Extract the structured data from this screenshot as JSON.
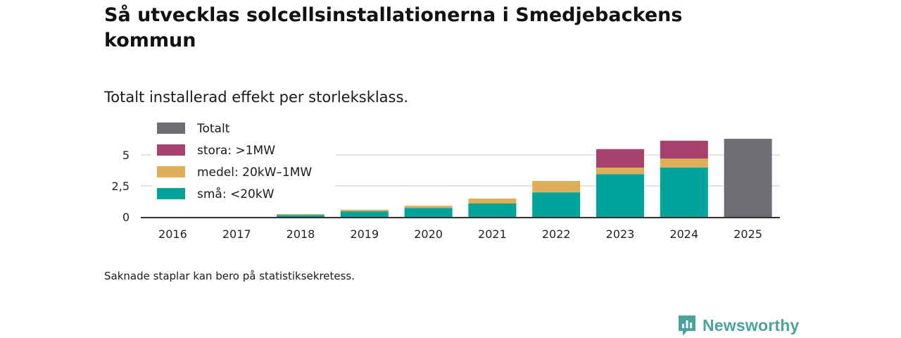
{
  "header": {
    "title": "Så utvecklas solcellsinstallationerna i Smedjebackens kommun",
    "subtitle": "Totalt installerad effekt per storleksklass."
  },
  "footer": {
    "note": "Saknade staplar kan bero på statistiksekretess.",
    "brand": "Newsworthy"
  },
  "chart_data": {
    "type": "bar",
    "stacked": true,
    "title": "Så utvecklas solcellsinstallationerna i Smedjebackens kommun",
    "subtitle": "Totalt installerad effekt per storleksklass.",
    "xlabel": "",
    "ylabel": "",
    "ylim": [
      0,
      6.5
    ],
    "yticks": [
      0,
      2.5,
      5
    ],
    "ytick_labels": [
      "0",
      "2,5",
      "5"
    ],
    "grid": true,
    "legend_position": "top-left",
    "categories": [
      "2016",
      "2017",
      "2018",
      "2019",
      "2020",
      "2021",
      "2022",
      "2023",
      "2024",
      "2025"
    ],
    "series": [
      {
        "name": "små: <20kW",
        "color": "#00a39a",
        "values": [
          0,
          0,
          0.15,
          0.45,
          0.72,
          1.08,
          1.98,
          3.45,
          3.98,
          0
        ]
      },
      {
        "name": "medel: 20kW–1MW",
        "color": "#deae59",
        "values": [
          0,
          0,
          0.08,
          0.13,
          0.18,
          0.4,
          0.92,
          0.52,
          0.72,
          0
        ]
      },
      {
        "name": "stora: >1MW",
        "color": "#a8416b",
        "values": [
          0,
          0,
          0,
          0,
          0,
          0,
          0,
          1.5,
          1.45,
          0
        ]
      },
      {
        "name": "Totalt",
        "color": "#6d6d73",
        "values": [
          0,
          0,
          0,
          0,
          0,
          0,
          0,
          0,
          0,
          6.3
        ]
      }
    ],
    "legend_order": [
      "Totalt",
      "stora: >1MW",
      "medel: 20kW–1MW",
      "små: <20kW"
    ]
  }
}
